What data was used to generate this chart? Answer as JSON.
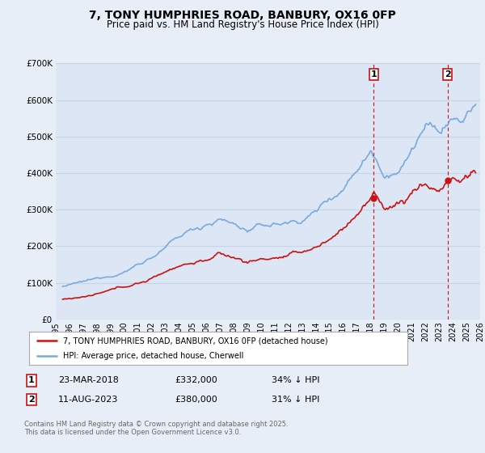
{
  "title": "7, TONY HUMPHRIES ROAD, BANBURY, OX16 0FP",
  "subtitle": "Price paid vs. HM Land Registry's House Price Index (HPI)",
  "bg_color": "#e8eef7",
  "plot_bg_color": "#dce6f5",
  "grid_color": "#c8d4e8",
  "hpi_color": "#7aaadd",
  "price_color": "#cc1111",
  "dashed_color": "#cc1111",
  "ylim": [
    0,
    700000
  ],
  "yticks": [
    0,
    100000,
    200000,
    300000,
    400000,
    500000,
    600000,
    700000
  ],
  "purchase1_date": "23-MAR-2018",
  "purchase1_price": 332000,
  "purchase1_hpi_diff": "34% ↓ HPI",
  "purchase1_x": 2018.22,
  "purchase2_date": "11-AUG-2023",
  "purchase2_price": 380000,
  "purchase2_hpi_diff": "31% ↓ HPI",
  "purchase2_x": 2023.61,
  "legend_label1": "7, TONY HUMPHRIES ROAD, BANBURY, OX16 0FP (detached house)",
  "legend_label2": "HPI: Average price, detached house, Cherwell",
  "footnote": "Contains HM Land Registry data © Crown copyright and database right 2025.\nThis data is licensed under the Open Government Licence v3.0.",
  "xmin": 1995,
  "xmax": 2026
}
